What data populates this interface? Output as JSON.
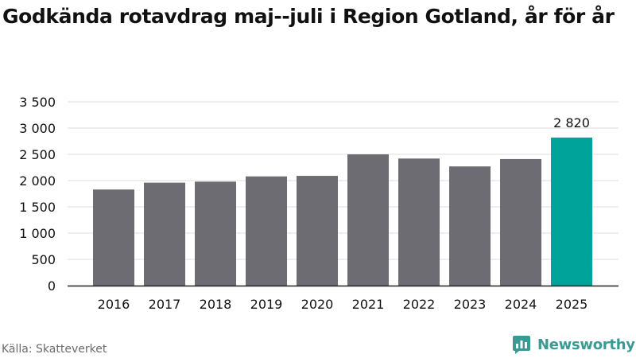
{
  "title": "Godkända rotavdrag maj--juli i Region Gotland, år för år",
  "source": "Källa: Skatteverket",
  "brand": {
    "name": "Newsworthy",
    "icon": "newsworthy-logo-icon",
    "color": "#3b9b94"
  },
  "colors": {
    "bar": "#6d6c72",
    "highlight": "#00a39a",
    "grid": "#dddddd",
    "axis": "#222222",
    "text": "#111111"
  },
  "chart_data": {
    "type": "bar",
    "categories": [
      "2016",
      "2017",
      "2018",
      "2019",
      "2020",
      "2021",
      "2022",
      "2023",
      "2024",
      "2025"
    ],
    "values": [
      1830,
      1960,
      1980,
      2080,
      2090,
      2500,
      2420,
      2270,
      2410,
      2820
    ],
    "highlight_index": 9,
    "data_labels": [
      {
        "index": 9,
        "text": "2 820"
      }
    ],
    "ylim": [
      0,
      3500
    ],
    "yticks": [
      0,
      500,
      1000,
      1500,
      2000,
      2500,
      3000,
      3500
    ],
    "ytick_labels": [
      "0",
      "500",
      "1 000",
      "1 500",
      "2 000",
      "2 500",
      "3 000",
      "3 500"
    ],
    "xlabel": "",
    "ylabel": "",
    "grid": true,
    "legend": false
  }
}
